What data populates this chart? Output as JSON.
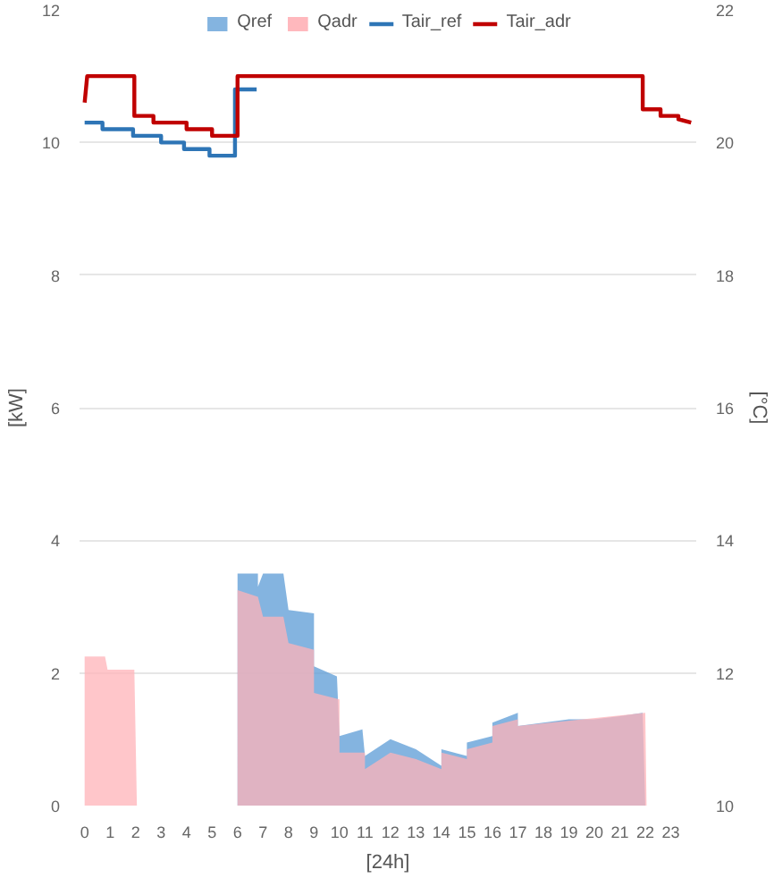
{
  "chart_data": {
    "type": "line",
    "xlabel": "[24h]",
    "ylabel": "[kW]",
    "y2label": "[°C]",
    "xlim": [
      -0.2,
      24
    ],
    "xticks": [
      0,
      1,
      2,
      3,
      4,
      5,
      6,
      7,
      8,
      9,
      10,
      11,
      12,
      13,
      14,
      15,
      16,
      17,
      18,
      19,
      20,
      21,
      22,
      23
    ],
    "ylim": [
      0,
      12
    ],
    "yticks": [
      0,
      2,
      4,
      6,
      8,
      10,
      12
    ],
    "y2lim": [
      10,
      22
    ],
    "y2ticks": [
      10,
      12,
      14,
      16,
      18,
      20,
      22
    ],
    "grid": "y",
    "legend": "top",
    "series": [
      {
        "name": "Qref",
        "type": "area",
        "color": "#5b9bd5",
        "x": [
          6,
          6.8,
          6.8,
          7.0,
          7.8,
          8.0,
          9.0,
          9.0,
          9.9,
          10.0,
          10.9,
          11.0,
          12.0,
          13.0,
          14.0,
          14.0,
          15.0,
          15.0,
          16.0,
          16.0,
          17.0,
          17.0,
          18,
          19,
          20,
          21,
          21.9,
          22.0
        ],
        "values": [
          3.5,
          3.5,
          3.3,
          3.5,
          3.5,
          2.95,
          2.9,
          2.1,
          1.95,
          1.05,
          1.15,
          0.75,
          1.0,
          0.85,
          0.6,
          0.85,
          0.75,
          0.95,
          1.05,
          1.25,
          1.4,
          1.2,
          1.25,
          1.3,
          1.3,
          1.35,
          1.4,
          0
        ]
      },
      {
        "name": "Qadr",
        "type": "area",
        "color": "#ffb3b8",
        "x": [
          0,
          0.8,
          0.9,
          1.95,
          2.05,
          4,
          6,
          6.8,
          7.0,
          7.8,
          8.0,
          9.0,
          9.0,
          10.0,
          10.0,
          11.0,
          11.0,
          12.0,
          13.0,
          14.0,
          14.0,
          15.0,
          15.0,
          16.0,
          16.0,
          17.0,
          17.0,
          22.0,
          22.05
        ],
        "values": [
          2.25,
          2.25,
          2.05,
          2.05,
          0,
          null,
          3.25,
          3.15,
          2.85,
          2.85,
          2.45,
          2.35,
          1.7,
          1.6,
          0.8,
          0.8,
          0.55,
          0.8,
          0.7,
          0.55,
          0.8,
          0.7,
          0.85,
          0.95,
          1.2,
          1.3,
          1.2,
          1.4,
          0
        ]
      },
      {
        "name": "Tair_ref",
        "axis": "y2",
        "color": "#2e75b6",
        "x": [
          0,
          0.7,
          0.7,
          1.9,
          1.9,
          3.0,
          3.0,
          3.9,
          3.9,
          4.9,
          4.9,
          5.9,
          5.9,
          6.75
        ],
        "values": [
          20.3,
          20.3,
          20.2,
          20.2,
          20.1,
          20.1,
          20.0,
          20.0,
          19.9,
          19.9,
          19.8,
          19.8,
          20.8,
          20.8
        ]
      },
      {
        "name": "Tair_adr",
        "axis": "y2",
        "color": "#c00000",
        "x": [
          0,
          0.1,
          1.95,
          1.95,
          2.7,
          2.7,
          4,
          4,
          5,
          5,
          6,
          6,
          21.9,
          21.9,
          22.6,
          22.6,
          23.3,
          23.3,
          23.8
        ],
        "values": [
          20.6,
          21,
          21,
          20.4,
          20.4,
          20.3,
          20.3,
          20.2,
          20.2,
          20.1,
          20.1,
          21,
          21,
          20.5,
          20.5,
          20.4,
          20.4,
          20.35,
          20.3
        ]
      }
    ]
  }
}
